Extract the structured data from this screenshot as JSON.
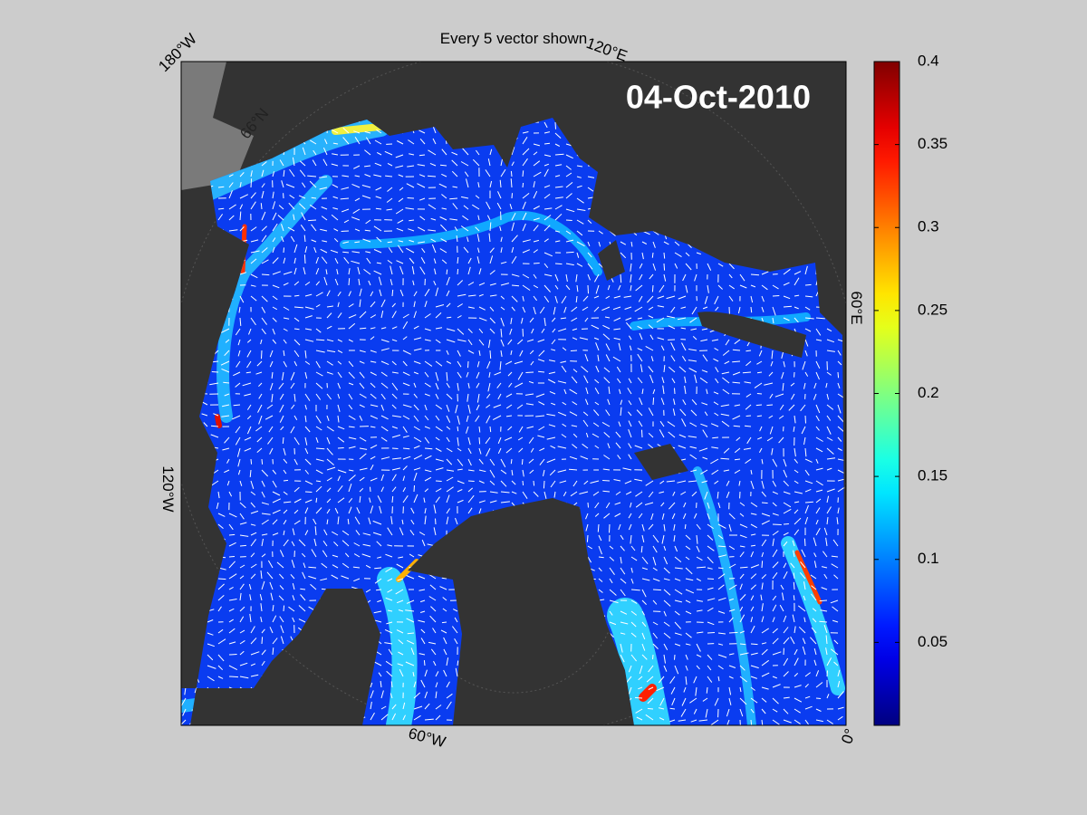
{
  "title": "Every 5 vector shown",
  "date_label": "04-Oct-2010",
  "map": {
    "longitude_labels": [
      "180°W",
      "120°E",
      "60°E",
      "0°",
      "60°W",
      "120°W"
    ],
    "latitude_labels": [
      "66°N"
    ]
  },
  "colorbar": {
    "lim": [
      0,
      0.4
    ],
    "ticks": [
      0.05,
      0.1,
      0.15,
      0.2,
      0.25,
      0.3,
      0.35,
      0.4
    ],
    "colormap": "jet"
  }
}
